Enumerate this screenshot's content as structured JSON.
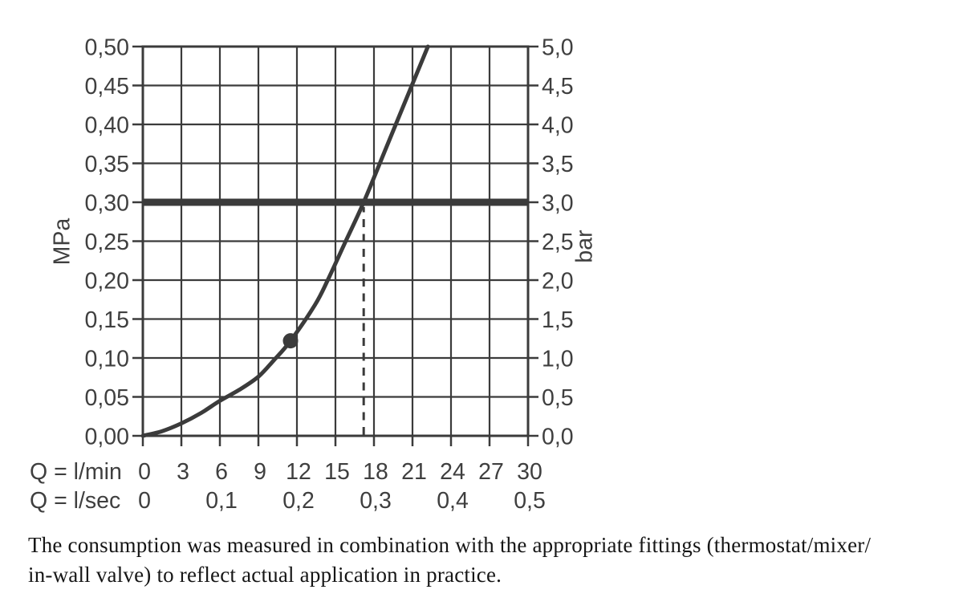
{
  "caption": {
    "lines": [
      "The consumption was measured in combination with the appropriate fittings (thermostat/mixer/",
      "in-wall valve) to reflect actual application in practice."
    ]
  },
  "chart_data": {
    "type": "line",
    "title": "",
    "description": "Flow rate vs. pressure characteristic curve measured with appropriate fittings",
    "color": "#3b3b3b",
    "label_color": "#3f3f3f",
    "grid": {
      "x_step_lmin": 3,
      "y_step_mpa": 0.05,
      "visible": true
    },
    "x_axis": {
      "row1_label": "Q = l/min",
      "row2_label": "Q = l/sec",
      "range_lmin": [
        0,
        30
      ],
      "ticks_lmin": [
        {
          "v": 0,
          "label": "0"
        },
        {
          "v": 3,
          "label": "3"
        },
        {
          "v": 6,
          "label": "6"
        },
        {
          "v": 9,
          "label": "9"
        },
        {
          "v": 12,
          "label": "12"
        },
        {
          "v": 15,
          "label": "15"
        },
        {
          "v": 18,
          "label": "18"
        },
        {
          "v": 21,
          "label": "21"
        },
        {
          "v": 24,
          "label": "24"
        },
        {
          "v": 27,
          "label": "27"
        },
        {
          "v": 30,
          "label": "30"
        }
      ],
      "ticks_lsec": [
        {
          "v": 0,
          "label": "0"
        },
        {
          "v": 6,
          "label": "0,1"
        },
        {
          "v": 12,
          "label": "0,2"
        },
        {
          "v": 18,
          "label": "0,3"
        },
        {
          "v": 24,
          "label": "0,4"
        },
        {
          "v": 30,
          "label": "0,5"
        }
      ]
    },
    "y_axis_left": {
      "unit": "MPa",
      "range_mpa": [
        0,
        0.5
      ],
      "ticks": [
        {
          "v": 0.0,
          "label": "0,00"
        },
        {
          "v": 0.05,
          "label": "0,05"
        },
        {
          "v": 0.1,
          "label": "0,10"
        },
        {
          "v": 0.15,
          "label": "0,15"
        },
        {
          "v": 0.2,
          "label": "0,20"
        },
        {
          "v": 0.25,
          "label": "0,25"
        },
        {
          "v": 0.3,
          "label": "0,30"
        },
        {
          "v": 0.35,
          "label": "0,35"
        },
        {
          "v": 0.4,
          "label": "0,40"
        },
        {
          "v": 0.45,
          "label": "0,45"
        },
        {
          "v": 0.5,
          "label": "0,50"
        }
      ]
    },
    "y_axis_right": {
      "unit": "bar",
      "range_bar": [
        0,
        5
      ],
      "ticks": [
        {
          "v": 0.0,
          "label": "0,0"
        },
        {
          "v": 0.5,
          "label": "0,5"
        },
        {
          "v": 1.0,
          "label": "1,0"
        },
        {
          "v": 1.5,
          "label": "1,5"
        },
        {
          "v": 2.0,
          "label": "2,0"
        },
        {
          "v": 2.5,
          "label": "2,5"
        },
        {
          "v": 3.0,
          "label": "3,0"
        },
        {
          "v": 3.5,
          "label": "3,5"
        },
        {
          "v": 4.0,
          "label": "4,0"
        },
        {
          "v": 4.5,
          "label": "4,5"
        },
        {
          "v": 5.0,
          "label": "5,0"
        }
      ]
    },
    "series": [
      {
        "name": "flow-pressure-curve",
        "points_lmin_mpa": [
          [
            0,
            0
          ],
          [
            1.5,
            0.006
          ],
          [
            3,
            0.016
          ],
          [
            4.5,
            0.029
          ],
          [
            6,
            0.045
          ],
          [
            7.5,
            0.059
          ],
          [
            9,
            0.076
          ],
          [
            10.2,
            0.097
          ],
          [
            11.5,
            0.122
          ],
          [
            13.4,
            0.168
          ],
          [
            14.4,
            0.2
          ],
          [
            15.8,
            0.25
          ],
          [
            17.2,
            0.3
          ],
          [
            19,
            0.372
          ],
          [
            20.4,
            0.428
          ],
          [
            21.4,
            0.468
          ],
          [
            22.2,
            0.5
          ]
        ]
      }
    ],
    "reference_line": {
      "mpa": 0.3,
      "bar": 3.0
    },
    "marker_point": {
      "q_lmin": 11.5,
      "mpa": 0.122
    },
    "dashed_guide": {
      "q_lmin": 17.2,
      "from_mpa": 0,
      "to_mpa": 0.3
    }
  }
}
